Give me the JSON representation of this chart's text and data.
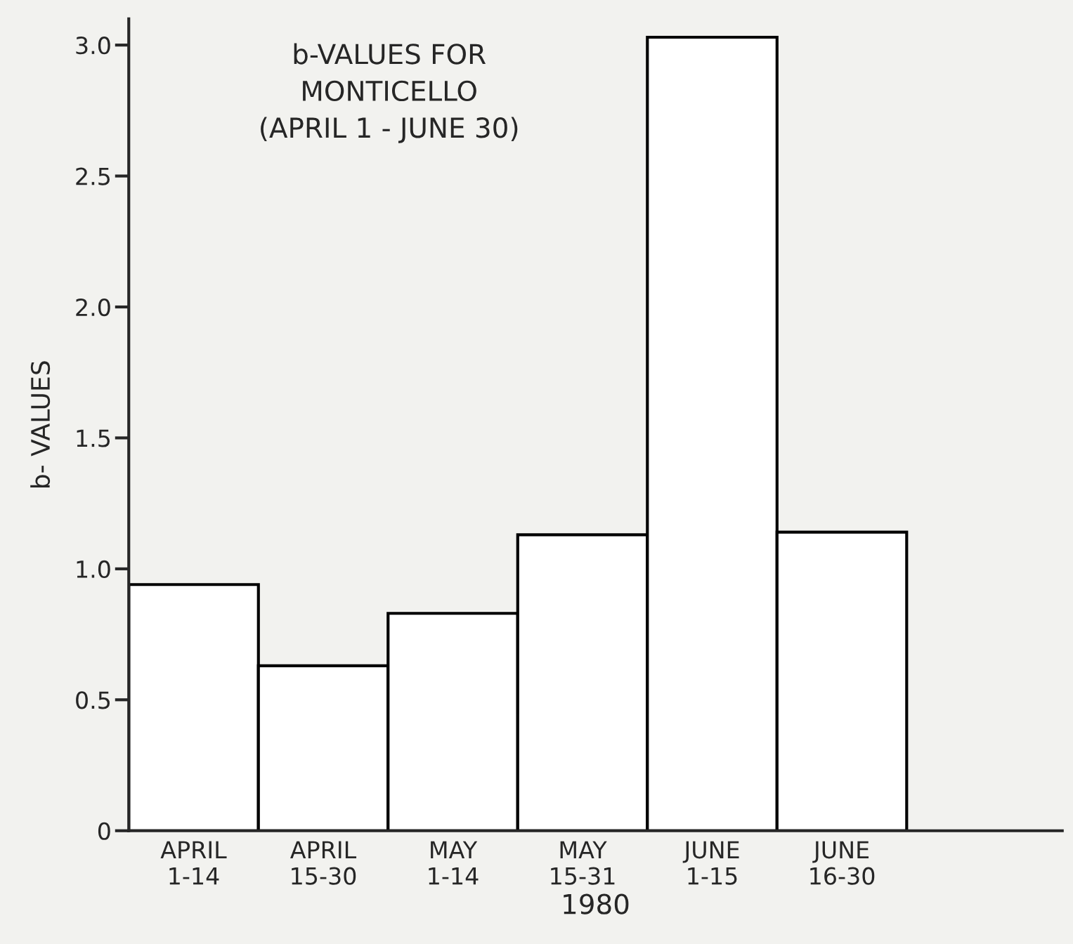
{
  "chart_data": {
    "type": "bar",
    "title": "b-VALUES FOR\nMONTICELLO\n(APRIL 1 - JUNE 30)",
    "categories": [
      "APRIL\n1-14",
      "APRIL\n15-30",
      "MAY\n1-14",
      "MAY\n15-31",
      "JUNE\n1-15",
      "JUNE\n16-30"
    ],
    "values": [
      0.94,
      0.63,
      0.83,
      1.13,
      3.03,
      1.14
    ],
    "color": "#ffffff",
    "xlabel": "1980",
    "ylabel": "b- VALUES",
    "ylim": [
      0,
      3.1
    ],
    "yticks": [
      0,
      0.5,
      {
        "value": 1,
        "label": "1.0"
      },
      1.5,
      {
        "value": 2,
        "label": "2.0"
      },
      2.5,
      {
        "value": 3,
        "label": "3.0"
      }
    ],
    "grid": false
  }
}
